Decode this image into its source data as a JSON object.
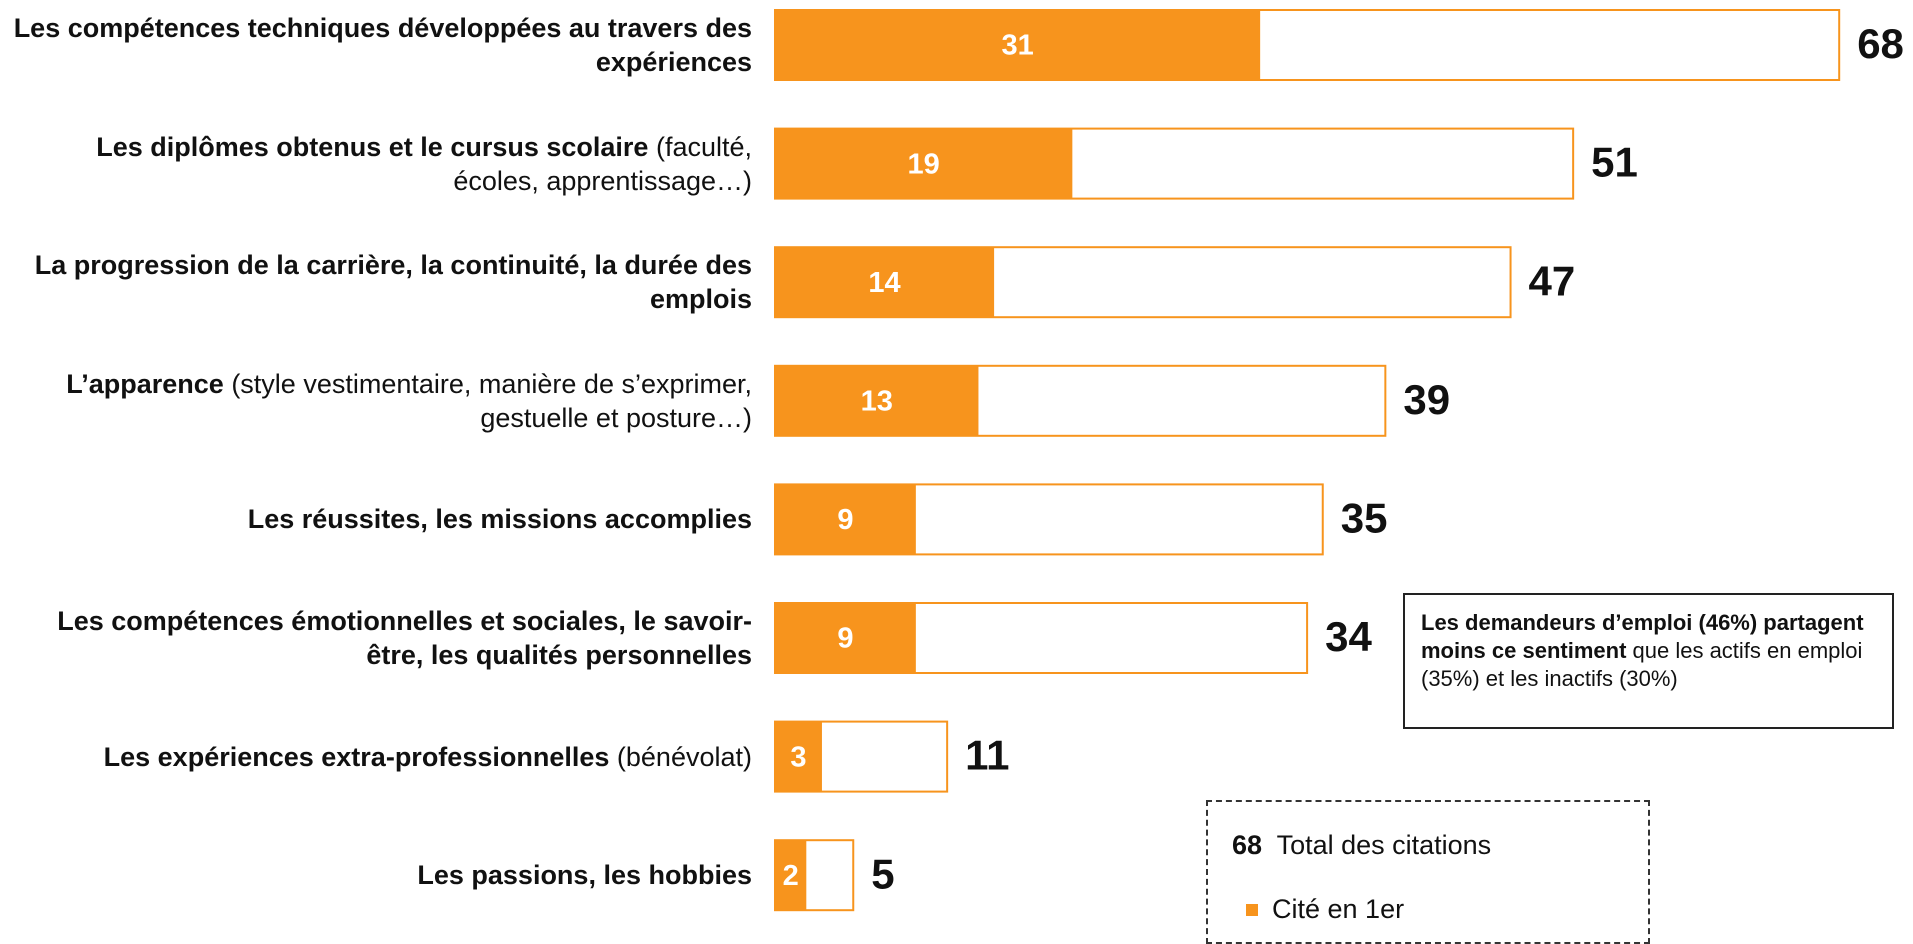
{
  "chart_data": {
    "type": "bar",
    "orientation": "horizontal",
    "categories": [
      "Les compétences techniques développées au travers des expériences",
      "Les diplômes obtenus et le cursus scolaire",
      "La progression de la carrière, la continuité, la durée des emplois",
      "L’apparence",
      "Les réussites, les missions accomplies",
      "Les compétences émotionnelles et sociales, le savoir-être, les qualités personnelles",
      "Les expériences extra-professionnelles",
      "Les passions, les hobbies"
    ],
    "category_notes": [
      null,
      "(faculté, écoles, apprentissage…)",
      null,
      "(style vestimentaire, manière de s’exprimer, gestuelle et posture…)",
      null,
      null,
      "(bénévolat)",
      null
    ],
    "series": [
      {
        "name": "Total des citations",
        "color": "#F7941D",
        "values": [
          68,
          51,
          47,
          39,
          35,
          34,
          11,
          5
        ]
      },
      {
        "name": "Cité en 1er",
        "color": "#F7941D",
        "values": [
          31,
          19,
          14,
          13,
          9,
          9,
          3,
          2
        ]
      }
    ],
    "annotation": {
      "bold": "Les demandeurs d’emploi (46%) partagent moins ce sentiment",
      "text": "que les actifs en emploi (35%) et les inactifs (30%)"
    }
  }
}
